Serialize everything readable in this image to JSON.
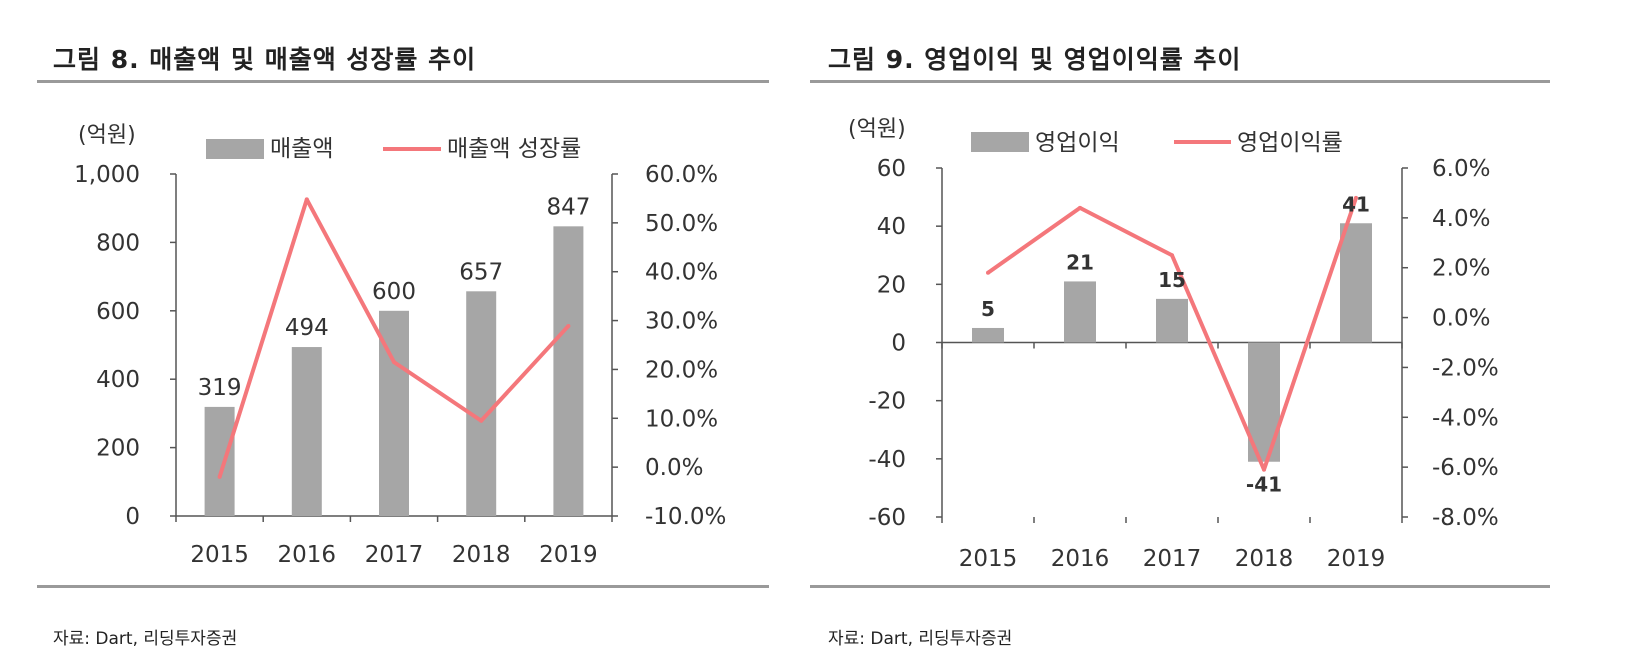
{
  "chart_data": [
    {
      "type": "bar",
      "title": "그림 8. 매출액 및 매출액 성장률 추이",
      "source": "자료: Dart, 리딩투자증권",
      "unit": "(억원)",
      "categories": [
        "2015",
        "2016",
        "2017",
        "2018",
        "2019"
      ],
      "series": [
        {
          "name": "매출액",
          "type": "bar",
          "axis": "left",
          "values": [
            319,
            494,
            600,
            657,
            847
          ],
          "color": "#a6a6a6"
        },
        {
          "name": "매출액 성장률",
          "type": "line",
          "axis": "right",
          "values": [
            -0.02,
            0.548,
            0.215,
            0.095,
            0.289
          ],
          "color": "#f4777b"
        }
      ],
      "data_labels": [
        "319",
        "494",
        "600",
        "657",
        "847"
      ],
      "ylim": [
        0,
        1000
      ],
      "yticks": [
        0,
        200,
        400,
        600,
        800,
        1000
      ],
      "ytick_labels": [
        "0",
        "200",
        "400",
        "600",
        "800",
        "1,000"
      ],
      "y2lim": [
        -0.1,
        0.6
      ],
      "y2ticks": [
        -0.1,
        0,
        0.1,
        0.2,
        0.3,
        0.4,
        0.5,
        0.6
      ],
      "y2tick_labels": [
        "-10.0%",
        "0.0%",
        "10.0%",
        "20.0%",
        "30.0%",
        "40.0%",
        "50.0%",
        "60.0%"
      ],
      "legend": "top",
      "grid": false
    },
    {
      "type": "bar",
      "title": "그림 9. 영업이익 및 영업이익률 추이",
      "source": "자료: Dart, 리딩투자증권",
      "unit": "(억원)",
      "categories": [
        "2015",
        "2016",
        "2017",
        "2018",
        "2019"
      ],
      "series": [
        {
          "name": "영업이익",
          "type": "bar",
          "axis": "left",
          "values": [
            5,
            21,
            15,
            -41,
            41
          ],
          "color": "#a6a6a6"
        },
        {
          "name": "영업이익률",
          "type": "line",
          "axis": "right",
          "values": [
            0.018,
            0.044,
            0.025,
            -0.061,
            0.048
          ],
          "color": "#f4777b"
        }
      ],
      "data_labels": [
        "5",
        "21",
        "15",
        "-41",
        "41"
      ],
      "ylim": [
        -60,
        60
      ],
      "yticks": [
        -60,
        -40,
        -20,
        0,
        20,
        40,
        60
      ],
      "ytick_labels": [
        "-60",
        "-40",
        "-20",
        "0",
        "20",
        "40",
        "60"
      ],
      "y2lim": [
        -0.08,
        0.06
      ],
      "y2ticks": [
        -0.08,
        -0.06,
        -0.04,
        -0.02,
        0,
        0.02,
        0.04,
        0.06
      ],
      "y2tick_labels": [
        "-8.0%",
        "-6.0%",
        "-4.0%",
        "-2.0%",
        "0.0%",
        "2.0%",
        "4.0%",
        "6.0%"
      ],
      "legend": "top",
      "grid": false
    }
  ]
}
